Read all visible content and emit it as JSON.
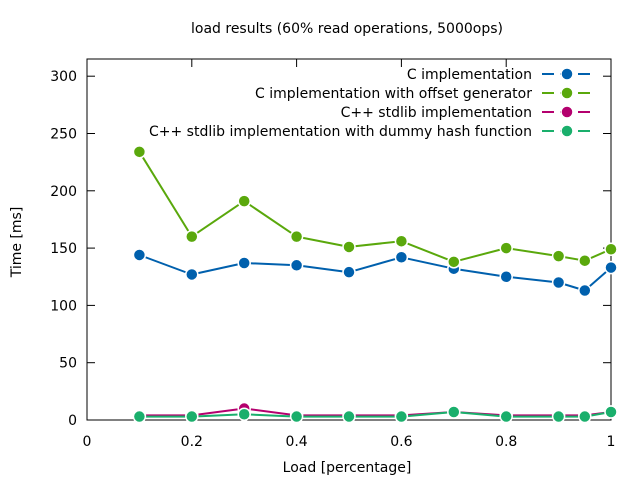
{
  "chart_data": {
    "type": "line",
    "title": "load results (60% read operations, 5000ops)",
    "xlabel": "Load [percentage]",
    "ylabel": "Time [ms]",
    "xlim": [
      0,
      1
    ],
    "ylim": [
      0,
      315
    ],
    "xticks": [
      0,
      0.2,
      0.4,
      0.6,
      0.8,
      1
    ],
    "yticks": [
      0,
      50,
      100,
      150,
      200,
      250,
      300
    ],
    "grid": false,
    "legend_position": "top-right",
    "x": [
      0.1,
      0.2,
      0.3,
      0.4,
      0.5,
      0.6,
      0.7,
      0.8,
      0.9,
      0.95,
      1.0
    ],
    "series": [
      {
        "name": "C implementation",
        "color": "#0060ad",
        "values": [
          144,
          127,
          137,
          135,
          129,
          142,
          132,
          125,
          120,
          113,
          133
        ]
      },
      {
        "name": "C implementation with offset generator",
        "color": "#5aa80c",
        "values": [
          234,
          160,
          191,
          160,
          151,
          156,
          138,
          150,
          143,
          139,
          149
        ]
      },
      {
        "name": "C++ stdlib implementation",
        "color": "#b4006e",
        "values": [
          4,
          4,
          10,
          4,
          4,
          4,
          7,
          4,
          4,
          4,
          7
        ]
      },
      {
        "name": "C++ stdlib implementation with dummy hash function",
        "color": "#1aaf6c",
        "values": [
          3,
          3,
          5,
          3,
          3,
          3,
          7,
          3,
          3,
          3,
          7
        ]
      }
    ]
  }
}
